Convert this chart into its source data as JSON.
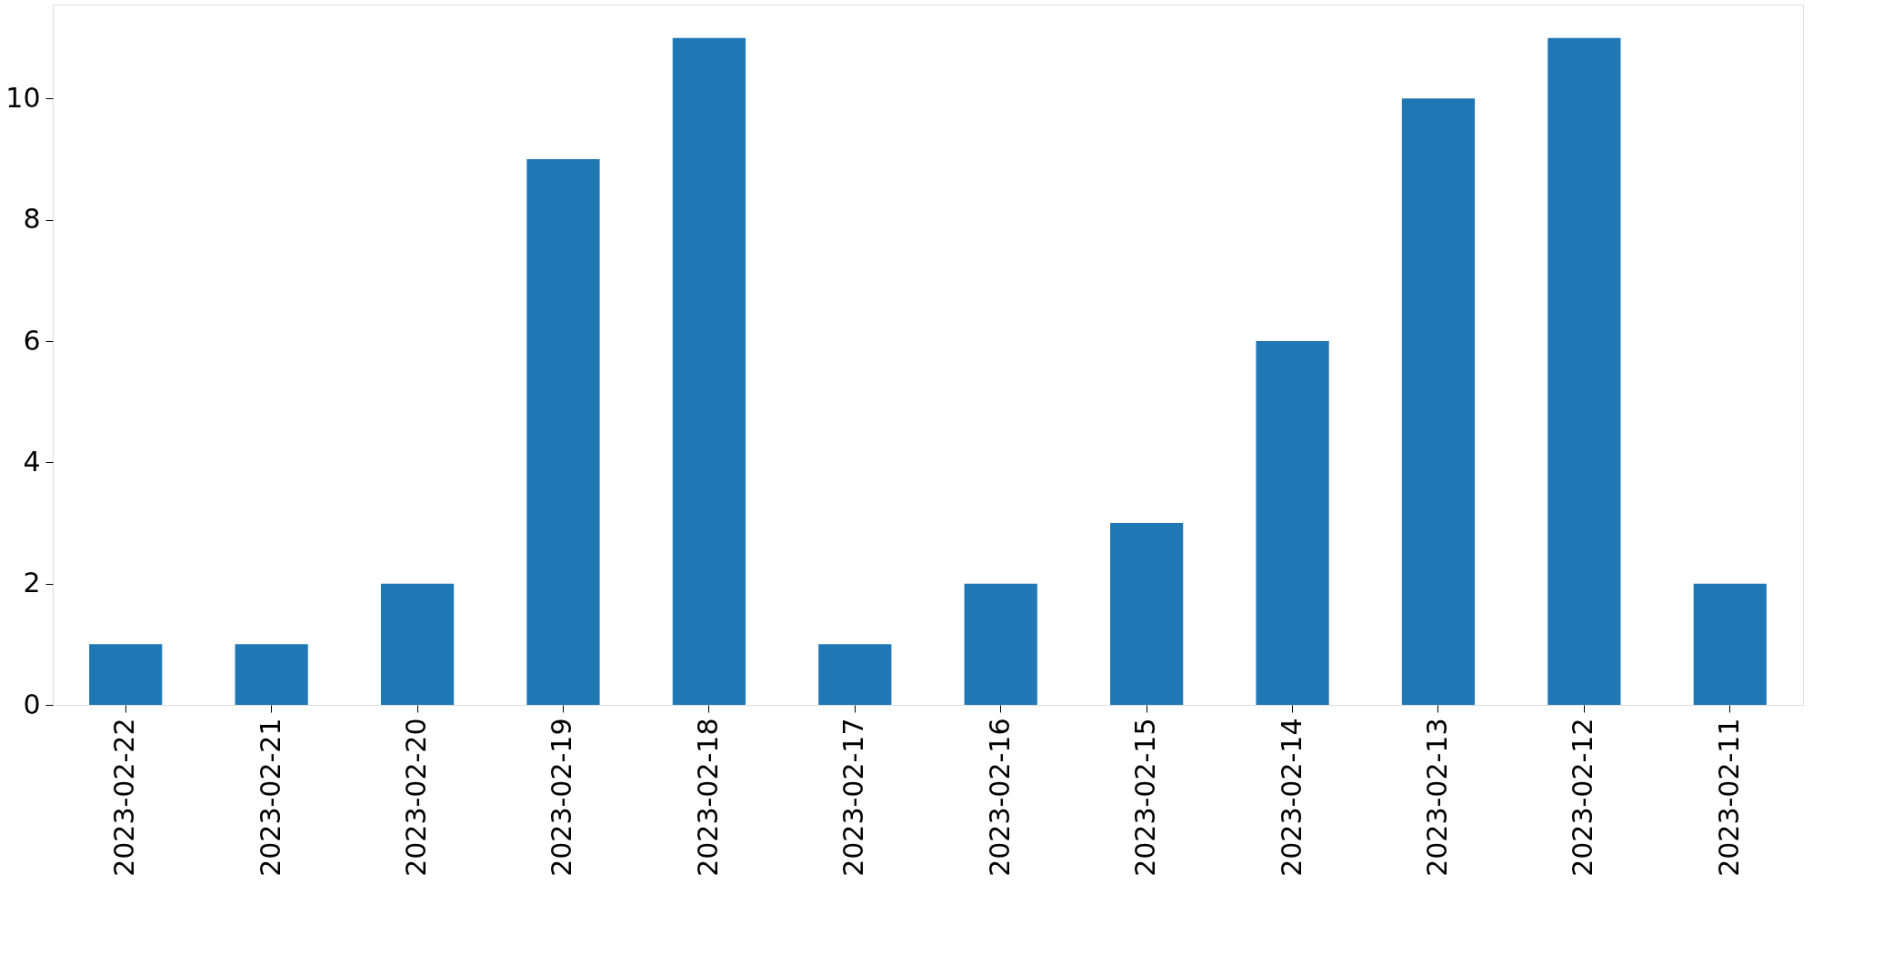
{
  "chart_data": {
    "type": "bar",
    "categories": [
      "2023-02-22",
      "2023-02-21",
      "2023-02-20",
      "2023-02-19",
      "2023-02-18",
      "2023-02-17",
      "2023-02-16",
      "2023-02-15",
      "2023-02-14",
      "2023-02-13",
      "2023-02-12",
      "2023-02-11"
    ],
    "values": [
      1,
      1,
      2,
      9,
      11,
      1,
      2,
      3,
      6,
      10,
      11,
      2
    ],
    "color": "#1f77b4",
    "ylim": [
      0,
      11.55
    ],
    "yticks": [
      0,
      2,
      4,
      6,
      8,
      10
    ]
  }
}
